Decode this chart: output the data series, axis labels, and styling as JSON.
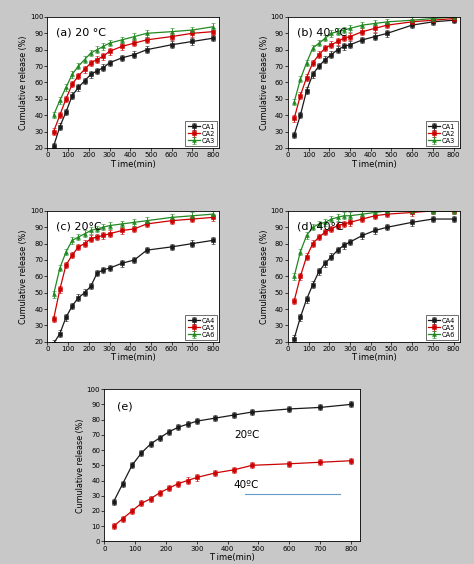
{
  "time": [
    30,
    60,
    90,
    120,
    150,
    180,
    210,
    240,
    270,
    300,
    360,
    420,
    480,
    600,
    700,
    800
  ],
  "panel_a": {
    "title": "(a) 20 °C",
    "CA1": [
      21,
      33,
      42,
      52,
      57,
      61,
      65,
      67,
      69,
      72,
      75,
      77,
      80,
      83,
      85,
      87
    ],
    "CA2": [
      30,
      40,
      50,
      59,
      64,
      68,
      72,
      74,
      76,
      79,
      82,
      84,
      86,
      88,
      90,
      91
    ],
    "CA3": [
      40,
      49,
      57,
      65,
      70,
      74,
      78,
      80,
      82,
      84,
      86,
      88,
      90,
      91,
      92,
      94
    ]
  },
  "panel_b": {
    "title": "(b) 40 °C",
    "CA1": [
      28,
      40,
      55,
      65,
      70,
      74,
      77,
      80,
      82,
      83,
      86,
      88,
      90,
      95,
      97,
      98
    ],
    "CA2": [
      38,
      52,
      63,
      72,
      77,
      81,
      83,
      85,
      87,
      88,
      91,
      93,
      95,
      97,
      98,
      99
    ],
    "CA3": [
      48,
      62,
      72,
      81,
      84,
      87,
      90,
      91,
      92,
      93,
      95,
      96,
      97,
      98,
      99,
      100
    ]
  },
  "panel_c": {
    "title": "(c) 20°C",
    "CA4": [
      19,
      25,
      35,
      42,
      47,
      50,
      54,
      62,
      64,
      65,
      68,
      70,
      76,
      78,
      80,
      82
    ],
    "CA5": [
      34,
      52,
      67,
      73,
      78,
      80,
      83,
      84,
      85,
      86,
      88,
      89,
      92,
      94,
      95,
      96
    ],
    "CA6": [
      49,
      65,
      75,
      82,
      84,
      86,
      88,
      89,
      90,
      91,
      92,
      93,
      94,
      96,
      97,
      98
    ]
  },
  "panel_d": {
    "title": "(d) 40°C",
    "CA4": [
      22,
      35,
      46,
      55,
      63,
      68,
      72,
      76,
      79,
      81,
      85,
      88,
      90,
      93,
      95,
      95
    ],
    "CA5": [
      45,
      60,
      72,
      80,
      84,
      87,
      89,
      91,
      92,
      93,
      95,
      97,
      98,
      99,
      100,
      100
    ],
    "CA6": [
      60,
      75,
      85,
      90,
      92,
      93,
      95,
      96,
      97,
      97,
      98,
      99,
      100,
      100,
      100,
      100
    ]
  },
  "panel_e": {
    "title": "(e)",
    "label_20": "20ºC",
    "label_40": "40ºC",
    "data_20C": [
      26,
      38,
      50,
      58,
      64,
      68,
      72,
      75,
      77,
      79,
      81,
      83,
      85,
      87,
      88,
      90
    ],
    "data_40C": [
      10,
      15,
      20,
      25,
      28,
      32,
      35,
      38,
      40,
      42,
      45,
      47,
      50,
      51,
      52,
      53
    ]
  },
  "colors": {
    "black": "#1a1a1a",
    "red": "#cc0000",
    "green": "#228822"
  },
  "ylim_abcd": [
    20,
    100
  ],
  "ylim_e": [
    0,
    100
  ],
  "xlim": [
    0,
    830
  ],
  "xticks": [
    0,
    100,
    200,
    300,
    400,
    500,
    600,
    700,
    800
  ],
  "xlabel": "T ime(min)",
  "ylabel": "Cumulative release (%)",
  "plot_bg": "#ffffff",
  "fig_bg": "#c8c8c8"
}
